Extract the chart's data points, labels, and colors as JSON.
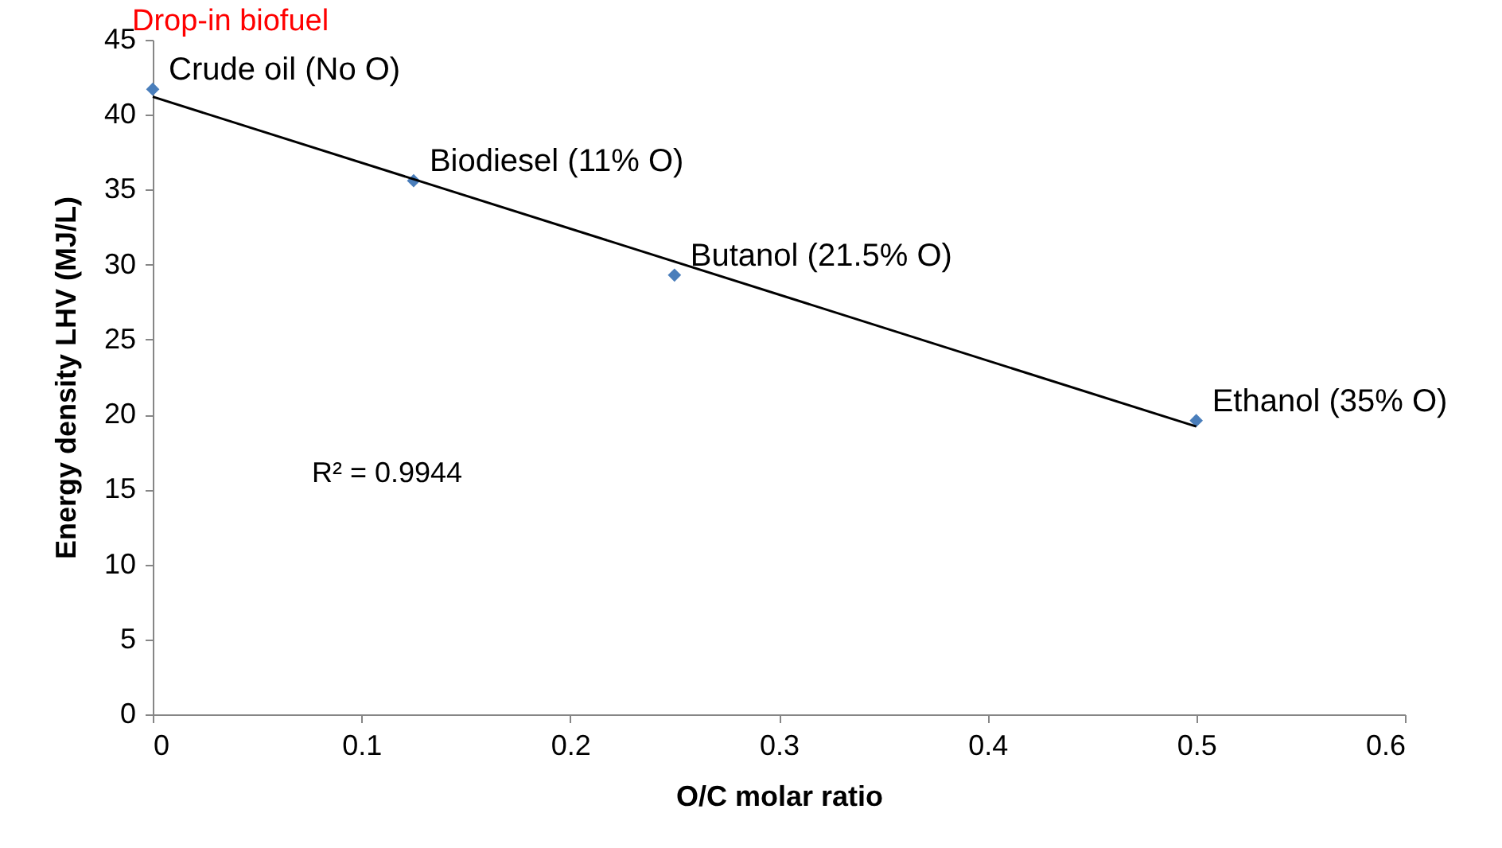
{
  "chart_data": {
    "type": "scatter",
    "xlabel": "O/C molar ratio",
    "ylabel": "Energy density LHV (MJ/L)",
    "x": [
      0,
      0.125,
      0.25,
      0.5
    ],
    "series": [
      {
        "color": "#4a7ebb",
        "marker": "diamond",
        "values": [
          41.7,
          35.6,
          29.3,
          19.6
        ]
      },
      {
        "type": "line",
        "color": "#000000",
        "x": [
          0,
          0.5
        ],
        "values": [
          41.2,
          19.2
        ]
      }
    ],
    "annotations": [
      "Drop-in biofuel",
      {
        "text": "Crude oil (No O)",
        "x": 0,
        "y": 41.7
      },
      {
        "text": "Biodiesel (11% O)",
        "x": 0.125,
        "y": 35.6
      },
      {
        "text": "Butanol (21.5% O)",
        "x": 0.25,
        "y": 29.3
      },
      {
        "text": "Ethanol (35% O)",
        "x": 0.5,
        "y": 19.6
      },
      "R² = 0.9944"
    ],
    "xlim": [
      0,
      0.6
    ],
    "xticks": [
      0,
      0.1,
      0.2,
      0.3,
      0.4,
      0.5,
      0.6
    ],
    "ylim": [
      0,
      45
    ],
    "yticks": [
      0,
      5,
      10,
      15,
      20,
      25,
      30,
      35,
      40,
      45
    ],
    "grid": false,
    "line_style": "solid"
  }
}
